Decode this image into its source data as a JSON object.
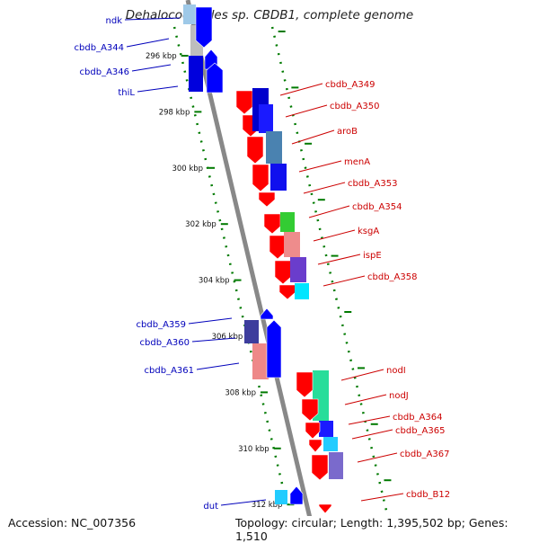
{
  "title": "Dehalococcoides sp. CBDB1, complete genome",
  "footer": {
    "accession": "Accession: NC_007356",
    "summary": "Topology: circular; Length: 1,395,502 bp; Genes: 1,510"
  },
  "colors": {
    "left_label": "#0000bb",
    "right_label": "#cc0000",
    "axis": "#888888",
    "tick": "#007a00",
    "forward_gene": "#0000ff",
    "reverse_gene": "#ff0000"
  },
  "ticks": [
    "296 kbp",
    "298 kbp",
    "300 kbp",
    "302 kbp",
    "304 kbp",
    "306 kbp",
    "308 kbp",
    "310 kbp",
    "312 kbp"
  ],
  "left_genes": [
    "ndk",
    "cbdb_A344",
    "cbdb_A346",
    "thiL",
    "cbdb_A359",
    "cbdb_A360",
    "cbdb_A361",
    "dut"
  ],
  "right_genes": [
    "cbdb_A349",
    "cbdb_A350",
    "aroB",
    "menA",
    "cbdb_A353",
    "cbdb_A354",
    "ksgA",
    "ispE",
    "cbdb_A358",
    "nodI",
    "nodJ",
    "cbdb_A364",
    "cbdb_A365",
    "cbdb_A367",
    "cbdb_B12"
  ]
}
